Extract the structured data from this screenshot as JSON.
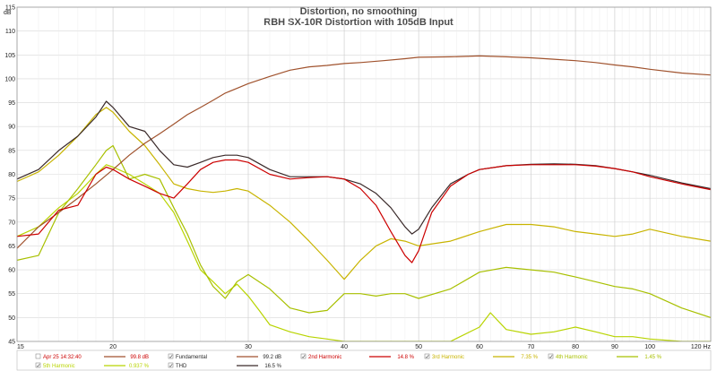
{
  "chart_data": {
    "type": "line",
    "title": "Distortion, no smoothing",
    "subtitle": "RBH SX-10R Distortion with 105dB Input",
    "ylabel": "dB",
    "xunit": "Hz",
    "x_scale": "log",
    "xlim": [
      15,
      120
    ],
    "ylim": [
      45,
      115
    ],
    "y_ticks": [
      45,
      50,
      55,
      60,
      65,
      70,
      75,
      80,
      85,
      90,
      95,
      100,
      105,
      110,
      115
    ],
    "x_ticks": [
      15,
      20,
      30,
      40,
      50,
      60,
      70,
      80,
      90,
      100,
      120
    ],
    "x_tick_labels": [
      "15",
      "20",
      "30",
      "40",
      "50",
      "60",
      "70",
      "80",
      "90",
      "100",
      "120 Hz"
    ],
    "grid": true,
    "series": [
      {
        "key": "fundamental",
        "name": "Fundamental",
        "color": "#a0522d",
        "x": [
          15,
          16,
          17,
          18,
          19,
          20,
          21,
          22,
          23,
          24,
          25,
          26,
          27,
          28,
          29,
          30,
          32,
          34,
          36,
          38,
          40,
          42,
          45,
          48,
          50,
          55,
          60,
          65,
          70,
          75,
          80,
          85,
          90,
          95,
          100,
          110,
          120
        ],
        "y": [
          64.5,
          69,
          72,
          75,
          78,
          81,
          84,
          86.5,
          88.5,
          90.5,
          92.5,
          94,
          95.5,
          97,
          98,
          99,
          100.5,
          101.8,
          102.5,
          102.8,
          103.2,
          103.4,
          103.8,
          104.2,
          104.5,
          104.6,
          104.8,
          104.6,
          104.4,
          104.1,
          103.8,
          103.4,
          102.9,
          102.5,
          102,
          101.2,
          100.8
        ]
      },
      {
        "key": "thd",
        "name": "THD",
        "color": "#3a2a2a",
        "x": [
          15,
          16,
          17,
          18,
          19,
          19.6,
          20,
          21,
          22,
          23,
          24,
          25,
          26,
          27,
          28,
          29,
          30,
          32,
          34,
          36,
          38,
          40,
          42,
          44,
          46,
          48,
          49,
          50,
          52,
          55,
          58,
          60,
          65,
          70,
          75,
          80,
          85,
          90,
          95,
          100,
          110,
          120
        ],
        "y": [
          79,
          81,
          85,
          88,
          92,
          95.3,
          94,
          90,
          89,
          85,
          82,
          81.5,
          82.5,
          83.5,
          84,
          84,
          83.5,
          81,
          79.5,
          79.5,
          79.5,
          79,
          78,
          76,
          73,
          69,
          67.5,
          68.5,
          73,
          78,
          80,
          81,
          81.8,
          82.1,
          82.2,
          82.1,
          81.8,
          81.2,
          80.5,
          79.8,
          78.2,
          77
        ]
      },
      {
        "key": "h2",
        "name": "2nd Harmonic",
        "color": "#cc0000",
        "x": [
          15,
          16,
          17,
          18,
          19,
          19.6,
          20,
          21,
          22,
          23,
          24,
          25,
          26,
          27,
          28,
          29,
          30,
          32,
          34,
          36,
          38,
          40,
          42,
          44,
          46,
          48,
          49,
          50,
          52,
          55,
          58,
          60,
          65,
          70,
          75,
          80,
          85,
          90,
          95,
          100,
          110,
          120
        ],
        "y": [
          67,
          67.5,
          72.5,
          73.5,
          80,
          81.5,
          81,
          79,
          77.5,
          76,
          75,
          78,
          81,
          82.5,
          83,
          83,
          82.5,
          80,
          79,
          79.3,
          79.5,
          79,
          77,
          73.5,
          68,
          63,
          61.5,
          64,
          72,
          77.5,
          80,
          81,
          81.8,
          82,
          82,
          82,
          81.7,
          81.2,
          80.5,
          79.5,
          78,
          76.8
        ]
      },
      {
        "key": "h3",
        "name": "3rd Harmonic",
        "color": "#c8b400",
        "x": [
          15,
          16,
          17,
          18,
          19,
          19.6,
          20,
          21,
          22,
          23,
          24,
          25,
          26,
          27,
          28,
          29,
          30,
          32,
          34,
          36,
          38,
          40,
          42,
          44,
          46,
          48,
          50,
          55,
          60,
          65,
          70,
          75,
          80,
          85,
          90,
          95,
          100,
          110,
          120
        ],
        "y": [
          78.5,
          80.5,
          84,
          88,
          92.5,
          94,
          93,
          89,
          86,
          82,
          78,
          77,
          76.5,
          76.2,
          76.5,
          77,
          76.5,
          73.5,
          70,
          66,
          62,
          58,
          62,
          65,
          66.5,
          66,
          65,
          66,
          68,
          69.5,
          69.5,
          69,
          68,
          67.5,
          67,
          67.5,
          68.5,
          67,
          66
        ]
      },
      {
        "key": "h4",
        "name": "4th Harmonic",
        "color": "#a8c000",
        "x": [
          15,
          16,
          17,
          18,
          19,
          19.6,
          20,
          21,
          22,
          23,
          24,
          25,
          26,
          27,
          28,
          29,
          30,
          32,
          34,
          36,
          38,
          40,
          42,
          44,
          46,
          48,
          50,
          55,
          60,
          65,
          70,
          75,
          80,
          85,
          90,
          95,
          100,
          110,
          120
        ],
        "y": [
          62,
          63,
          72,
          77,
          82,
          85,
          86,
          79,
          80,
          79,
          73,
          67.5,
          61,
          56.5,
          54,
          57.5,
          59,
          56,
          52,
          51,
          51.5,
          55,
          55,
          54.5,
          55,
          55,
          54,
          56,
          59.5,
          60.5,
          60,
          59.5,
          58.5,
          57.5,
          56.5,
          56,
          55,
          52,
          50
        ]
      },
      {
        "key": "h5",
        "name": "5th Harmonic",
        "color": "#b8d400",
        "x": [
          15,
          16,
          17,
          18,
          19,
          19.6,
          20,
          21,
          22,
          23,
          24,
          25,
          26,
          27,
          28,
          29,
          30,
          31,
          32,
          34,
          36,
          38,
          40,
          42,
          44,
          46,
          48,
          50,
          55,
          60,
          62,
          65,
          70,
          75,
          80,
          85,
          90,
          95,
          100,
          110,
          120
        ],
        "y": [
          67,
          69,
          73,
          76,
          80,
          82,
          81.5,
          80,
          78,
          76,
          72,
          66,
          60,
          57.5,
          55,
          57,
          54.5,
          51.5,
          48.5,
          47,
          46,
          45.5,
          45,
          45,
          45,
          45,
          45,
          45,
          45,
          48,
          51,
          47.5,
          46.5,
          47,
          48,
          47,
          46,
          46,
          45.5,
          45,
          45
        ]
      }
    ]
  },
  "legend": {
    "row1": [
      {
        "check": "",
        "label": "Apr 25 14:32:40",
        "value": "99.8 dB",
        "line_color": "#a0522d",
        "text_color": "#cc0000"
      },
      {
        "check": "✓",
        "label": "Fundamental",
        "value": "99.2 dB",
        "line_color": "#a0522d",
        "text_color": "#2a2a2a"
      },
      {
        "check": "✓",
        "label": "2nd Harmonic",
        "value": "14.8 %",
        "line_color": "#cc0000",
        "text_color": "#cc0000"
      },
      {
        "check": "✓",
        "label": "3rd Harmonic",
        "value": "7.35 %",
        "line_color": "#c8b400",
        "text_color": "#c8b400"
      },
      {
        "check": "✓",
        "label": "4th Harmonic",
        "value": "1.45 %",
        "line_color": "#a8c000",
        "text_color": "#a8c000"
      }
    ],
    "row2": [
      {
        "check": "✓",
        "label": "5th Harmonic",
        "value": "0.937 %",
        "line_color": "#b8d400",
        "text_color": "#b8d400"
      },
      {
        "check": "✓",
        "label": "THD",
        "value": "16.5 %",
        "line_color": "#3a2a2a",
        "text_color": "#2a2a2a"
      }
    ]
  }
}
